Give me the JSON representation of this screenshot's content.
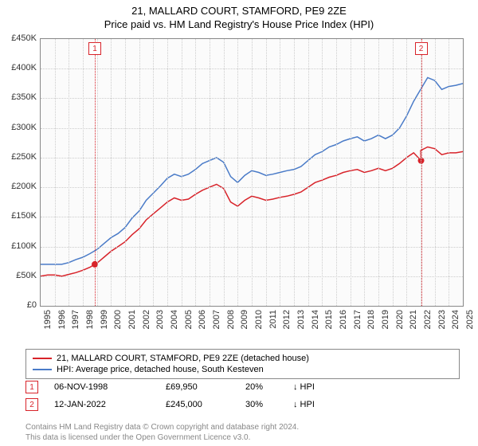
{
  "title_line1": "21, MALLARD COURT, STAMFORD, PE9 2ZE",
  "title_line2": "Price paid vs. HM Land Registry's House Price Index (HPI)",
  "chart": {
    "type": "line",
    "background_color": "#fbfbfb",
    "grid_color": "#cccccc",
    "y_axis": {
      "min": 0,
      "max": 450000,
      "ticks": [
        0,
        50000,
        100000,
        150000,
        200000,
        250000,
        300000,
        350000,
        400000,
        450000
      ],
      "tick_labels": [
        "£0",
        "£50K",
        "£100K",
        "£150K",
        "£200K",
        "£250K",
        "£300K",
        "£350K",
        "£400K",
        "£450K"
      ],
      "label_fontsize": 11
    },
    "x_axis": {
      "min": 1995,
      "max": 2025,
      "ticks": [
        1995,
        1996,
        1997,
        1998,
        1999,
        2000,
        2001,
        2002,
        2003,
        2004,
        2005,
        2006,
        2007,
        2008,
        2009,
        2010,
        2011,
        2012,
        2013,
        2014,
        2015,
        2016,
        2017,
        2018,
        2019,
        2020,
        2021,
        2022,
        2023,
        2024,
        2025
      ],
      "label_fontsize": 11
    },
    "series": [
      {
        "name": "red",
        "label": "21, MALLARD COURT, STAMFORD, PE9 2ZE (detached house)",
        "color": "#d8232a",
        "line_width": 1.5,
        "data": [
          [
            1995,
            50000
          ],
          [
            1995.5,
            52000
          ],
          [
            1996,
            52000
          ],
          [
            1996.5,
            50000
          ],
          [
            1997,
            53000
          ],
          [
            1997.5,
            56000
          ],
          [
            1998,
            60000
          ],
          [
            1998.5,
            65000
          ],
          [
            1998.85,
            69950
          ],
          [
            1999,
            72000
          ],
          [
            1999.5,
            82000
          ],
          [
            2000,
            92000
          ],
          [
            2000.5,
            100000
          ],
          [
            2001,
            108000
          ],
          [
            2001.5,
            120000
          ],
          [
            2002,
            130000
          ],
          [
            2002.5,
            145000
          ],
          [
            2003,
            155000
          ],
          [
            2003.5,
            165000
          ],
          [
            2004,
            175000
          ],
          [
            2004.5,
            182000
          ],
          [
            2005,
            178000
          ],
          [
            2005.5,
            180000
          ],
          [
            2006,
            188000
          ],
          [
            2006.5,
            195000
          ],
          [
            2007,
            200000
          ],
          [
            2007.5,
            205000
          ],
          [
            2008,
            198000
          ],
          [
            2008.5,
            175000
          ],
          [
            2009,
            168000
          ],
          [
            2009.5,
            178000
          ],
          [
            2010,
            185000
          ],
          [
            2010.5,
            182000
          ],
          [
            2011,
            178000
          ],
          [
            2011.5,
            180000
          ],
          [
            2012,
            183000
          ],
          [
            2012.5,
            185000
          ],
          [
            2013,
            188000
          ],
          [
            2013.5,
            192000
          ],
          [
            2014,
            200000
          ],
          [
            2014.5,
            208000
          ],
          [
            2015,
            212000
          ],
          [
            2015.5,
            217000
          ],
          [
            2016,
            220000
          ],
          [
            2016.5,
            225000
          ],
          [
            2017,
            228000
          ],
          [
            2017.5,
            230000
          ],
          [
            2018,
            225000
          ],
          [
            2018.5,
            228000
          ],
          [
            2019,
            232000
          ],
          [
            2019.5,
            228000
          ],
          [
            2020,
            232000
          ],
          [
            2020.5,
            240000
          ],
          [
            2021,
            250000
          ],
          [
            2021.5,
            258000
          ],
          [
            2022.03,
            245000
          ],
          [
            2022,
            262000
          ],
          [
            2022.5,
            268000
          ],
          [
            2023,
            265000
          ],
          [
            2023.5,
            255000
          ],
          [
            2024,
            258000
          ],
          [
            2024.5,
            258000
          ],
          [
            2025,
            260000
          ]
        ]
      },
      {
        "name": "blue",
        "label": "HPI: Average price, detached house, South Kesteven",
        "color": "#4a7bc8",
        "line_width": 1.5,
        "data": [
          [
            1995,
            70000
          ],
          [
            1995.5,
            70000
          ],
          [
            1996,
            70000
          ],
          [
            1996.5,
            70000
          ],
          [
            1997,
            73000
          ],
          [
            1997.5,
            78000
          ],
          [
            1998,
            82000
          ],
          [
            1998.5,
            88000
          ],
          [
            1999,
            95000
          ],
          [
            1999.5,
            105000
          ],
          [
            2000,
            115000
          ],
          [
            2000.5,
            122000
          ],
          [
            2001,
            132000
          ],
          [
            2001.5,
            148000
          ],
          [
            2002,
            160000
          ],
          [
            2002.5,
            178000
          ],
          [
            2003,
            190000
          ],
          [
            2003.5,
            202000
          ],
          [
            2004,
            215000
          ],
          [
            2004.5,
            222000
          ],
          [
            2005,
            218000
          ],
          [
            2005.5,
            222000
          ],
          [
            2006,
            230000
          ],
          [
            2006.5,
            240000
          ],
          [
            2007,
            245000
          ],
          [
            2007.5,
            250000
          ],
          [
            2008,
            242000
          ],
          [
            2008.5,
            218000
          ],
          [
            2009,
            208000
          ],
          [
            2009.5,
            220000
          ],
          [
            2010,
            228000
          ],
          [
            2010.5,
            225000
          ],
          [
            2011,
            220000
          ],
          [
            2011.5,
            222000
          ],
          [
            2012,
            225000
          ],
          [
            2012.5,
            228000
          ],
          [
            2013,
            230000
          ],
          [
            2013.5,
            235000
          ],
          [
            2014,
            245000
          ],
          [
            2014.5,
            255000
          ],
          [
            2015,
            260000
          ],
          [
            2015.5,
            268000
          ],
          [
            2016,
            272000
          ],
          [
            2016.5,
            278000
          ],
          [
            2017,
            282000
          ],
          [
            2017.5,
            285000
          ],
          [
            2018,
            278000
          ],
          [
            2018.5,
            282000
          ],
          [
            2019,
            288000
          ],
          [
            2019.5,
            282000
          ],
          [
            2020,
            288000
          ],
          [
            2020.5,
            300000
          ],
          [
            2021,
            320000
          ],
          [
            2021.5,
            345000
          ],
          [
            2022,
            365000
          ],
          [
            2022.5,
            385000
          ],
          [
            2023,
            380000
          ],
          [
            2023.5,
            365000
          ],
          [
            2024,
            370000
          ],
          [
            2024.5,
            372000
          ],
          [
            2025,
            375000
          ]
        ]
      }
    ],
    "sale_markers": [
      {
        "num": "1",
        "year": 1998.85,
        "line_color": "#d8232a"
      },
      {
        "num": "2",
        "year": 2022.03,
        "line_color": "#d8232a"
      }
    ]
  },
  "legend": {
    "items": [
      {
        "color": "#d8232a",
        "text": "21, MALLARD COURT, STAMFORD, PE9 2ZE (detached house)"
      },
      {
        "color": "#4a7bc8",
        "text": "HPI: Average price, detached house, South Kesteven"
      }
    ]
  },
  "sales": [
    {
      "num": "1",
      "color": "#d8232a",
      "date": "06-NOV-1998",
      "price": "£69,950",
      "pct": "20%",
      "arrow": "↓",
      "suffix": "HPI"
    },
    {
      "num": "2",
      "color": "#d8232a",
      "date": "12-JAN-2022",
      "price": "£245,000",
      "pct": "30%",
      "arrow": "↓",
      "suffix": "HPI"
    }
  ],
  "footer_line1": "Contains HM Land Registry data © Crown copyright and database right 2024.",
  "footer_line2": "This data is licensed under the Open Government Licence v3.0."
}
